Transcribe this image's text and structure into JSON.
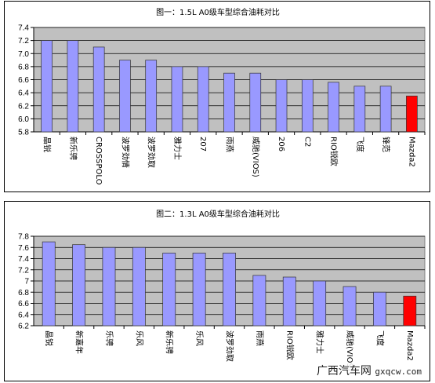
{
  "chart_data": [
    {
      "type": "bar",
      "title": "图一：1.5L A0级车型综合油耗对比",
      "categories": [
        "晶锐",
        "新乐骋",
        "CROSSPOLO",
        "波罗劲情",
        "波罗劲取",
        "雅力士",
        "207",
        "雨燕",
        "威驰(VIOS)",
        "206",
        "C2",
        "RIO锐欧",
        "飞度",
        "锋范",
        "Mazda2"
      ],
      "values": [
        7.2,
        7.2,
        7.1,
        6.9,
        6.9,
        6.8,
        6.8,
        6.7,
        6.7,
        6.6,
        6.6,
        6.56,
        6.5,
        6.5,
        6.35
      ],
      "highlight_index": 14,
      "ylim": [
        5.8,
        7.4
      ],
      "yticks": [
        "5.8",
        "6.0",
        "6.2",
        "6.4",
        "6.6",
        "6.8",
        "7.0",
        "7.2",
        "7.4"
      ],
      "grid": true,
      "colors": {
        "bar": "#9999ff",
        "highlight": "#ff0000",
        "plot_bg": "#c0c0c0"
      }
    },
    {
      "type": "bar",
      "title": "图二：1.3L A0级车型综合油耗对比",
      "categories": [
        "晶锐",
        "新嘉年",
        "乐骋",
        "乐风",
        "新乐骋",
        "乐风",
        "波罗劲取",
        "雨燕",
        "RIO锐欧",
        "雅力士",
        "威驰(VIOS)",
        "飞度",
        "Mazda2"
      ],
      "values": [
        7.7,
        7.65,
        7.6,
        7.6,
        7.5,
        7.5,
        7.5,
        7.1,
        7.07,
        7.0,
        6.9,
        6.8,
        6.73
      ],
      "highlight_index": 12,
      "ylim": [
        6.2,
        7.8
      ],
      "yticks": [
        "6.2",
        "6.4",
        "6.6",
        "6.8",
        "7",
        "7.2",
        "7.4",
        "7.6",
        "7.8"
      ],
      "grid": true,
      "colors": {
        "bar": "#9999ff",
        "highlight": "#ff0000",
        "plot_bg": "#c0c0c0"
      }
    }
  ],
  "watermark": {
    "text": "广西汽车网",
    "domain": "gxqcw.com"
  }
}
